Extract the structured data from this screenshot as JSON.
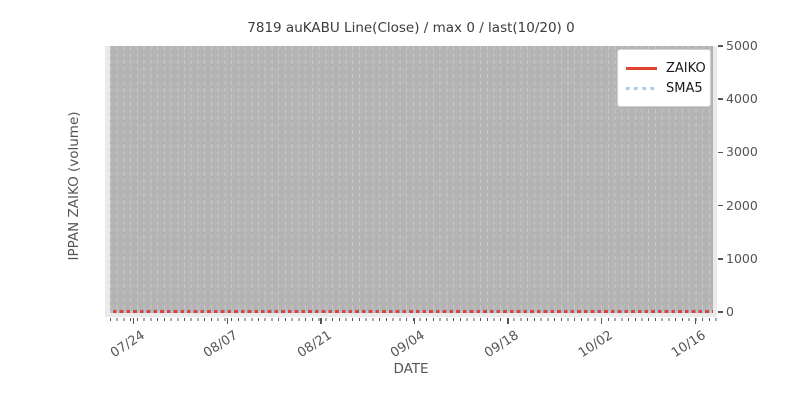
{
  "title": "7819 auKABU Line(Close) / max 0 / last(10/20) 0",
  "x_axis": {
    "label": "DATE",
    "ticks": [
      "07/24",
      "08/07",
      "08/21",
      "09/04",
      "09/18",
      "10/02",
      "10/16"
    ]
  },
  "y_axis": {
    "label": "IPPAN ZAIKO (volume)",
    "ticks": [
      "0",
      "1000",
      "2000",
      "3000",
      "4000",
      "5000"
    ],
    "position": "right"
  },
  "legend": {
    "items": [
      {
        "label": "ZAIKO",
        "line_style": "solid",
        "color": "#e0432e"
      },
      {
        "label": "SMA5",
        "line_style": "dotted",
        "color": "#a9c8e8"
      }
    ]
  },
  "colors": {
    "figure_background": "#ffffff",
    "axes_background": "#eaeaea",
    "bar_region": "#b4b4b4",
    "gridline": "#c8c8c8",
    "zaiko_line": "#e0432e",
    "sma5_line": "#a9c8e8",
    "tick_text": "#555555",
    "title_text": "#3b3b3b"
  },
  "chart_data": {
    "type": "line",
    "title": "7819 auKABU Line(Close) / max 0 / last(10/20) 0",
    "xlabel": "DATE",
    "ylabel": "IPPAN ZAIKO (volume)",
    "x_tick_labels": [
      "07/24",
      "08/07",
      "08/21",
      "09/04",
      "09/18",
      "10/02",
      "10/16"
    ],
    "x_tick_interval_days": 14,
    "ylim": [
      0,
      5000
    ],
    "y_ticks": [
      0,
      1000,
      2000,
      3000,
      4000,
      5000
    ],
    "y_ticks_position": "right",
    "series": [
      {
        "name": "ZAIKO",
        "style": "solid",
        "color": "#e0432e",
        "constant_value": 0,
        "values_at_ticks": [
          0,
          0,
          0,
          0,
          0,
          0,
          0
        ]
      },
      {
        "name": "SMA5",
        "style": "dotted",
        "color": "#a9c8e8",
        "constant_value": 0,
        "values_at_ticks": [
          0,
          0,
          0,
          0,
          0,
          0,
          0
        ]
      }
    ],
    "max_value": 0,
    "last_value": 0,
    "legend_position": "upper right",
    "grid": "dense vertical dashed daily gridlines over gray band spanning full plot height"
  }
}
